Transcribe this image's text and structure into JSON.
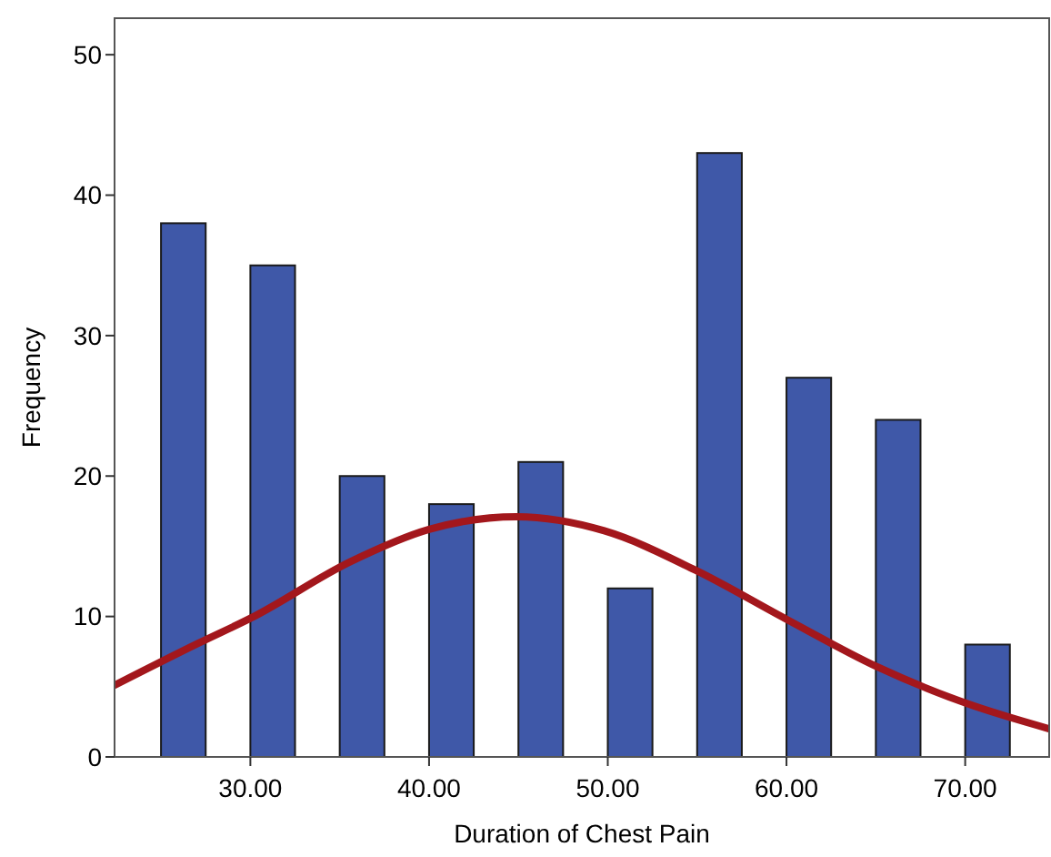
{
  "chart_data": {
    "type": "bar",
    "xlabel": "Duration of Chest Pain",
    "ylabel": "Frequency",
    "xlim": [
      22.4,
      74.7
    ],
    "xticks": [
      {
        "value": 30,
        "label": "30.00"
      },
      {
        "value": 40,
        "label": "40.00"
      },
      {
        "value": 50,
        "label": "50.00"
      },
      {
        "value": 60,
        "label": "60.00"
      },
      {
        "value": 70,
        "label": "70.00"
      }
    ],
    "ylim": [
      0,
      52.6
    ],
    "yticks": [
      0,
      10,
      20,
      30,
      40,
      50
    ],
    "grid": false,
    "series": [
      {
        "color": "#3f58a8",
        "x": [
          26.25,
          31.25,
          36.25,
          41.25,
          46.25,
          51.25,
          56.25,
          61.25,
          66.25,
          71.25
        ],
        "values": [
          38,
          35,
          20,
          18,
          21,
          12,
          43,
          27,
          24,
          8
        ]
      },
      {
        "type": "line",
        "color": "#a3171c",
        "line_style": "solid",
        "marker": "none",
        "x": [
          22.4,
          27.1,
          30.2,
          35.6,
          40,
          44.9,
          49.8,
          54.9,
          60,
          65.1,
          70.1,
          74.7
        ],
        "values": [
          5.1,
          8.1,
          10,
          13.9,
          16.2,
          17.1,
          16.1,
          13.3,
          9.8,
          6.4,
          3.8,
          2
        ]
      }
    ]
  }
}
